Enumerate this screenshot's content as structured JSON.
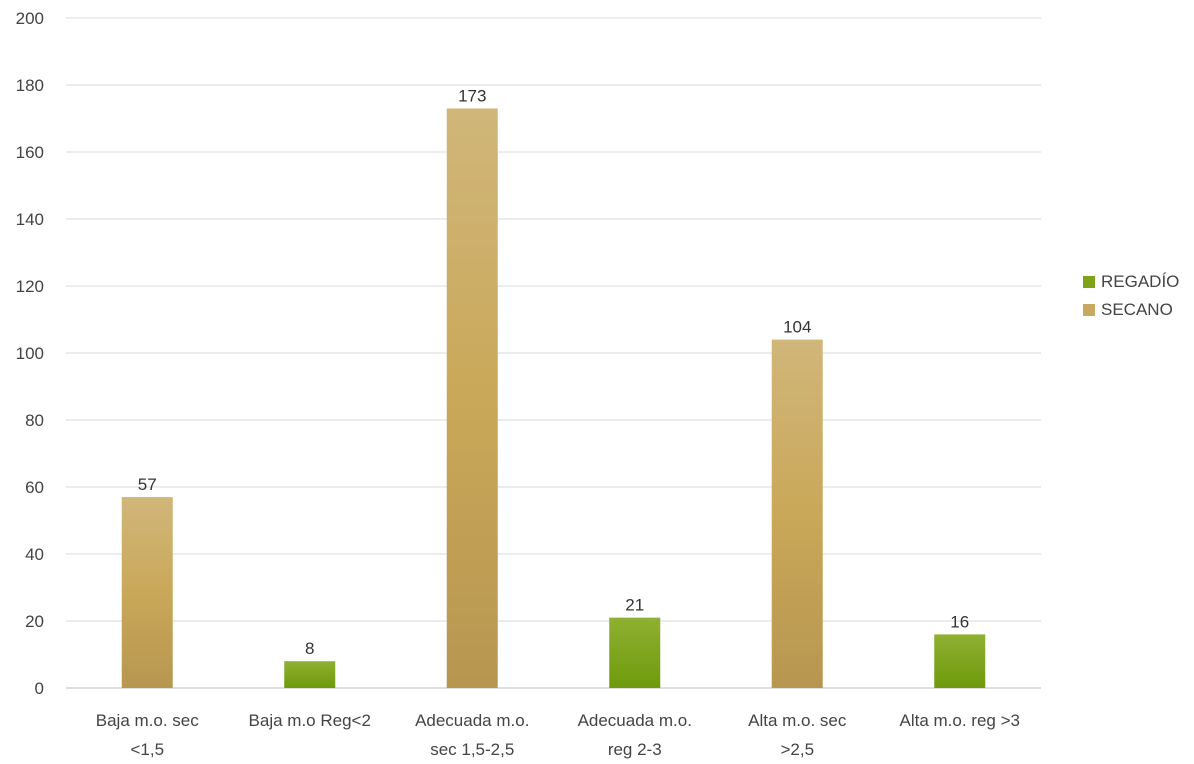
{
  "chart_data": {
    "type": "bar",
    "title": "",
    "xlabel": "",
    "ylabel": "",
    "ylim": [
      0,
      200
    ],
    "yticks": [
      0,
      20,
      40,
      60,
      80,
      100,
      120,
      140,
      160,
      180,
      200
    ],
    "grid": true,
    "legend_position": "right",
    "categories": [
      [
        "Baja m.o. sec",
        "<1,5"
      ],
      [
        "Baja m.o Reg<2"
      ],
      [
        "Adecuada m.o.",
        "sec 1,5-2,5"
      ],
      [
        "Adecuada m.o.",
        "reg 2-3"
      ],
      [
        "Alta m.o. sec",
        ">2,5"
      ],
      [
        "Alta m.o. reg >3"
      ]
    ],
    "series": [
      {
        "name": "REGADÍO",
        "color": "#7fa21b",
        "values": [
          null,
          8,
          null,
          21,
          null,
          16
        ]
      },
      {
        "name": "SECANO",
        "color": "#c9a962",
        "values": [
          57,
          null,
          173,
          null,
          104,
          null
        ]
      }
    ]
  }
}
